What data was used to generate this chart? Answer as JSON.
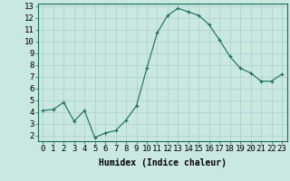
{
  "x": [
    0,
    1,
    2,
    3,
    4,
    5,
    6,
    7,
    8,
    9,
    10,
    11,
    12,
    13,
    14,
    15,
    16,
    17,
    18,
    19,
    20,
    21,
    22,
    23
  ],
  "y": [
    4.1,
    4.2,
    4.8,
    3.2,
    4.1,
    1.8,
    2.2,
    2.4,
    3.3,
    4.5,
    7.7,
    10.7,
    12.2,
    12.8,
    12.5,
    12.2,
    11.4,
    10.1,
    8.7,
    7.7,
    7.3,
    6.6,
    6.6,
    7.2
  ],
  "line_color": "#1a6b5a",
  "marker": "+",
  "marker_size": 3,
  "bg_color": "#c8e8e0",
  "grid_color": "#b0ccc8",
  "xlabel": "Humidex (Indice chaleur)",
  "xlabel_fontsize": 7,
  "tick_fontsize": 6.5,
  "ylim": [
    1.5,
    13.2
  ],
  "xlim": [
    -0.5,
    23.5
  ],
  "yticks": [
    2,
    3,
    4,
    5,
    6,
    7,
    8,
    9,
    10,
    11,
    12,
    13
  ],
  "xticks": [
    0,
    1,
    2,
    3,
    4,
    5,
    6,
    7,
    8,
    9,
    10,
    11,
    12,
    13,
    14,
    15,
    16,
    17,
    18,
    19,
    20,
    21,
    22,
    23
  ]
}
